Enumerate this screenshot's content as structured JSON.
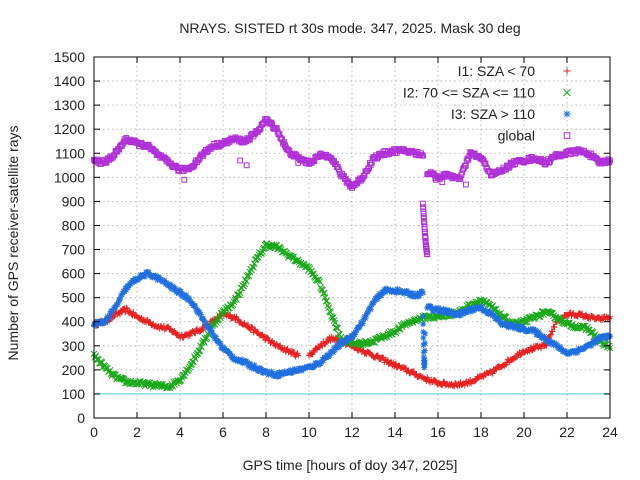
{
  "chart_data": {
    "type": "scatter",
    "title": "NRAYS. SISTED rt 30s mode. 347, 2025. Mask 30 deg",
    "xlabel": "GPS time [hours of doy 347, 2025]",
    "ylabel": "Number of GPS receiver-satellite rays",
    "xlim": [
      0,
      24
    ],
    "ylim": [
      0,
      1500
    ],
    "xticks": [
      0,
      2,
      4,
      6,
      8,
      10,
      12,
      14,
      16,
      18,
      20,
      22,
      24
    ],
    "yticks": [
      0,
      100,
      200,
      300,
      400,
      500,
      600,
      700,
      800,
      900,
      1000,
      1100,
      1200,
      1300,
      1400,
      1500
    ],
    "grid": true,
    "legend_position": "top-right",
    "reference_line": {
      "y": 100,
      "color": "#4dd0e1"
    },
    "series": [
      {
        "name": "I1: SZA < 70",
        "marker": "+",
        "color": "#e82020",
        "segments": [
          {
            "x": [
              0,
              0.5,
              1,
              1.5,
              2,
              2.5,
              3,
              3.5,
              4,
              4.5,
              5,
              5.5,
              6,
              6.5,
              7,
              7.5,
              8,
              8.5,
              9,
              9.5
            ],
            "y": [
              390,
              400,
              430,
              450,
              420,
              400,
              380,
              370,
              340,
              350,
              370,
              400,
              430,
              420,
              390,
              360,
              330,
              300,
              280,
              260
            ]
          },
          {
            "x": [
              10,
              10.5,
              11,
              11.5,
              12,
              12.5,
              13,
              13.5,
              14,
              14.5,
              15,
              15.5,
              16,
              16.5,
              17,
              17.5,
              18,
              18.5,
              19,
              19.5,
              20,
              20.5,
              21,
              21.5,
              22,
              22.5,
              23,
              23.5,
              24
            ],
            "y": [
              260,
              300,
              330,
              320,
              300,
              280,
              260,
              240,
              220,
              200,
              180,
              160,
              145,
              140,
              140,
              150,
              170,
              190,
              220,
              250,
              280,
              290,
              300,
              400,
              430,
              430,
              420,
              410,
              420
            ]
          }
        ]
      },
      {
        "name": "I2: 70 <= SZA <= 110",
        "marker": "x",
        "color": "#1aa81a",
        "segments": [
          {
            "x": [
              0,
              0.5,
              1,
              1.5,
              2,
              2.5,
              3,
              3.5,
              4,
              4.5,
              5,
              5.5,
              6,
              6.5,
              7,
              7.5,
              8,
              8.5,
              9,
              9.5,
              10,
              10.5,
              11,
              11.5,
              12,
              12.5,
              13,
              13.5,
              14,
              14.5,
              15,
              15.5,
              16,
              16.5,
              17,
              17.5,
              18,
              18.5,
              19,
              19.5,
              20,
              20.5,
              21,
              21.5,
              22,
              22.5,
              23,
              23.5,
              24
            ],
            "y": [
              260,
              210,
              170,
              150,
              145,
              140,
              135,
              130,
              160,
              220,
              300,
              380,
              440,
              480,
              560,
              650,
              720,
              710,
              680,
              650,
              620,
              560,
              440,
              330,
              310,
              310,
              320,
              340,
              360,
              390,
              410,
              420,
              420,
              430,
              440,
              470,
              490,
              460,
              420,
              390,
              400,
              420,
              440,
              420,
              390,
              380,
              370,
              320,
              290
            ]
          }
        ]
      },
      {
        "name": "I3: SZA > 110",
        "marker": "*",
        "color": "#1f6fdf",
        "segments": [
          {
            "x": [
              0,
              0.5,
              1,
              1.5,
              2,
              2.5,
              3,
              3.5,
              4,
              4.5,
              5,
              5.5,
              6,
              6.5,
              7,
              7.5,
              8,
              8.5,
              9,
              9.5,
              10,
              10.5,
              11,
              11.5,
              12,
              12.5,
              13,
              13.5,
              14,
              14.5,
              15,
              15.3
            ],
            "y": [
              390,
              400,
              460,
              540,
              580,
              600,
              580,
              550,
              520,
              490,
              420,
              350,
              290,
              250,
              230,
              210,
              190,
              180,
              190,
              200,
              210,
              230,
              270,
              310,
              340,
              400,
              480,
              530,
              530,
              520,
              510,
              520
            ]
          },
          {
            "x": [
              15.3,
              15.32,
              15.34,
              15.36,
              15.38,
              15.4
            ],
            "y": [
              420,
              330,
              250,
              210,
              240,
              350
            ]
          },
          {
            "x": [
              15.5,
              16,
              16.5,
              17,
              17.5,
              18,
              18.5,
              19,
              19.5,
              20,
              20.5,
              21,
              21.5,
              22,
              22.5,
              23,
              23.5,
              24
            ],
            "y": [
              460,
              450,
              440,
              430,
              450,
              460,
              430,
              390,
              380,
              370,
              360,
              330,
              300,
              270,
              280,
              300,
              330,
              340
            ]
          }
        ]
      },
      {
        "name": "global",
        "marker": "square",
        "color": "#b030d8",
        "segments": [
          {
            "x": [
              0,
              0.5,
              1,
              1.5,
              2,
              2.5,
              3,
              3.5,
              4,
              4.5,
              5,
              5.5,
              6,
              6.5,
              7,
              7.5,
              8,
              8.5,
              9,
              9.5,
              10,
              10.5,
              11,
              11.5,
              12,
              12.5,
              13,
              13.5,
              14,
              14.5,
              15,
              15.3
            ],
            "y": [
              1070,
              1060,
              1100,
              1160,
              1140,
              1130,
              1090,
              1060,
              1030,
              1040,
              1090,
              1130,
              1140,
              1160,
              1150,
              1180,
              1240,
              1200,
              1110,
              1080,
              1060,
              1090,
              1090,
              1010,
              960,
              1000,
              1080,
              1100,
              1110,
              1110,
              1100,
              1090
            ]
          },
          {
            "x": [
              15.3,
              15.35,
              15.4,
              15.45,
              15.5
            ],
            "y": [
              890,
              820,
              760,
              710,
              680
            ]
          },
          {
            "x": [
              15.5,
              16,
              16.5,
              17,
              17.5,
              18,
              18.5,
              19,
              19.5,
              20,
              20.5,
              21,
              21.5,
              22,
              22.5,
              23,
              23.5,
              24
            ],
            "y": [
              1020,
              1000,
              1010,
              990,
              1100,
              1080,
              1010,
              1030,
              1060,
              1070,
              1080,
              1060,
              1090,
              1100,
              1110,
              1100,
              1060,
              1070
            ]
          }
        ],
        "outliers": {
          "x": [
            4.2,
            6.8,
            7.1,
            8.9,
            9.5,
            15.9,
            16.2,
            17.3
          ],
          "y": [
            990,
            1070,
            1050,
            1130,
            1060,
            990,
            980,
            970
          ]
        }
      }
    ]
  }
}
